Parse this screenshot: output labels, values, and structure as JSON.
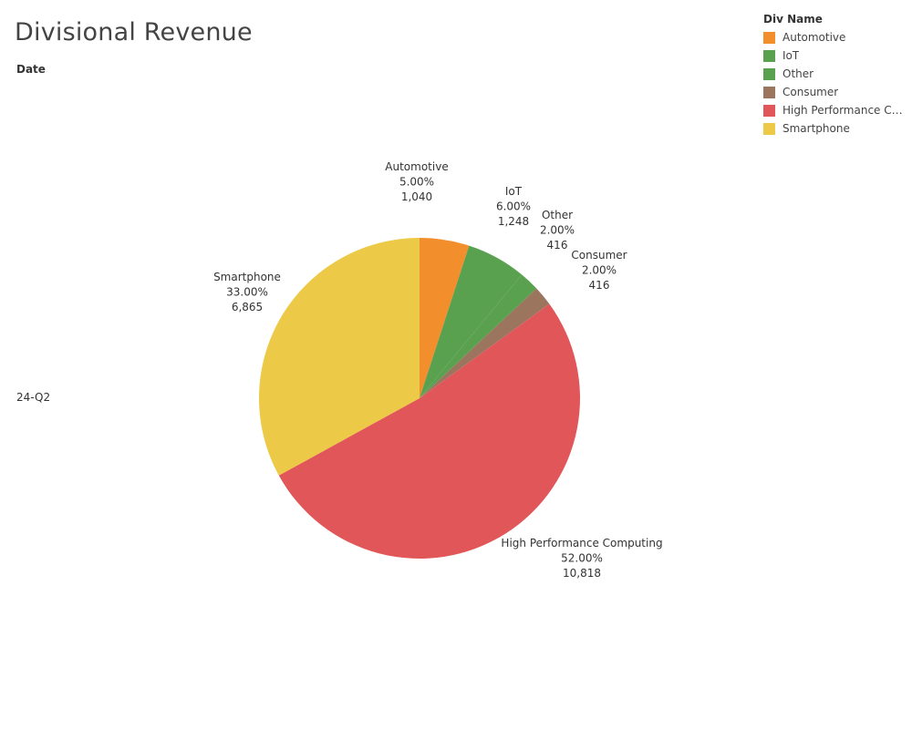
{
  "title": "Divisional Revenue",
  "column_header": "Date",
  "row_label": "24-Q2",
  "legend": {
    "title": "Div Name",
    "items": [
      {
        "label": "Automotive",
        "color": "#F28E2B"
      },
      {
        "label": "IoT",
        "color": "#59A14F"
      },
      {
        "label": "Other",
        "color": "#59A14F"
      },
      {
        "label": "Consumer",
        "color": "#9C755F"
      },
      {
        "label": "High Performance Co..",
        "color": "#E15759"
      },
      {
        "label": "Smartphone",
        "color": "#EDC948"
      }
    ]
  },
  "chart_data": {
    "type": "pie",
    "title": "Divisional Revenue",
    "categories": [
      "Automotive",
      "IoT",
      "Other",
      "Consumer",
      "High Performance Computing",
      "Smartphone"
    ],
    "values": [
      1040,
      1248,
      416,
      416,
      10818,
      6865
    ],
    "percent_labels": [
      "5.00%",
      "6.00%",
      "2.00%",
      "2.00%",
      "52.00%",
      "33.00%"
    ],
    "value_labels": [
      "1,040",
      "1,248",
      "416",
      "416",
      "10,818",
      "6,865"
    ],
    "colors": [
      "#F28E2B",
      "#59A14F",
      "#59A14F",
      "#9C755F",
      "#E15759",
      "#EDC948"
    ],
    "legend_position": "top-right"
  }
}
